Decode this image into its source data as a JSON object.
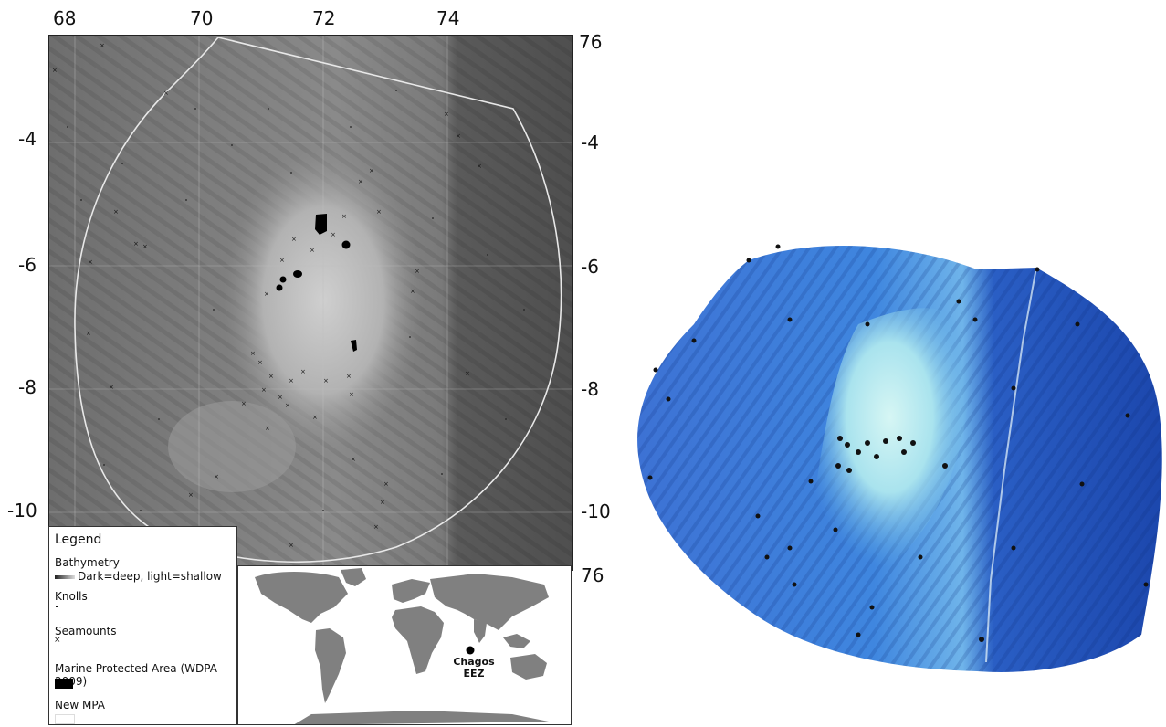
{
  "map": {
    "top_ticks": [
      "68",
      "70",
      "72",
      "74"
    ],
    "right_top_tick": "76",
    "right_bottom_tick": "76",
    "left_ticks": [
      "-4",
      "-6",
      "-8",
      "-10"
    ],
    "right_ticks": [
      "-4",
      "-6",
      "-8",
      "-10"
    ]
  },
  "legend": {
    "title": "Legend",
    "bathymetry": "Bathymetry",
    "bathymetry_desc": "Dark=deep, light=shallow",
    "knolls": "Knolls",
    "seamounts": "Seamounts",
    "mpa": "Marine Protected Area (WDPA 2009)",
    "new_mpa": "New MPA"
  },
  "inset": {
    "label_line1": "Chagos",
    "label_line2": "EEZ"
  },
  "colors": {
    "deep": "#4a4a4a",
    "shallow": "#c9c9c9",
    "relief_deep": "#1f4fb8",
    "relief_shallow": "#c8f2f2",
    "land": "#808080"
  }
}
